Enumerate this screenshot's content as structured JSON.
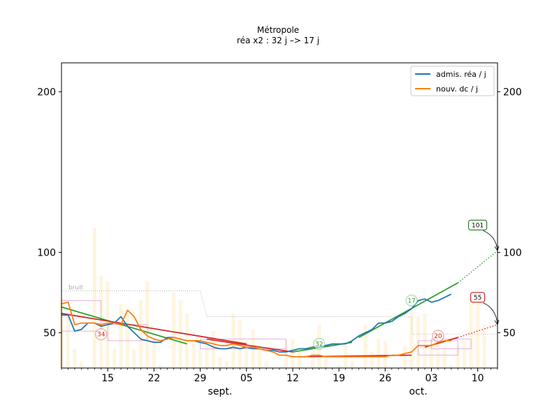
{
  "chart_data": {
    "type": "line",
    "title": "Métropole",
    "subtitle": "réa x2 : 32 j –> 17 j",
    "y_ticks": [
      50,
      100,
      200
    ],
    "ylim": [
      28,
      218
    ],
    "xlim": [
      "2020-08-08",
      "2020-10-13"
    ],
    "x_tick_labels": [
      {
        "date": "2020-08-15",
        "label": "15"
      },
      {
        "date": "2020-08-22",
        "label": "22"
      },
      {
        "date": "2020-08-29",
        "label": "29"
      },
      {
        "date": "2020-09-05",
        "label": "05"
      },
      {
        "date": "2020-09-12",
        "label": "12"
      },
      {
        "date": "2020-09-19",
        "label": "19"
      },
      {
        "date": "2020-09-26",
        "label": "26"
      },
      {
        "date": "2020-10-03",
        "label": "03"
      },
      {
        "date": "2020-10-10",
        "label": "10"
      }
    ],
    "month_labels": [
      {
        "date": "2020-09-01",
        "label": "sept."
      },
      {
        "date": "2020-10-01",
        "label": "oct."
      }
    ],
    "legend": {
      "position": "top-right",
      "entries": [
        {
          "label": "admis. réa / j",
          "color": "#1f77b4"
        },
        {
          "label": "nouv. dc / j",
          "color": "#ff7f0e"
        }
      ]
    },
    "noise_label": "bruit",
    "start_date": "2020-08-08",
    "series": [
      {
        "name": "admis. réa / j",
        "color": "#1f77b4",
        "values": [
          61,
          61,
          51,
          52,
          56,
          56,
          54,
          55,
          56,
          60,
          54,
          50,
          46,
          45,
          44,
          44,
          47,
          47,
          46,
          45,
          45,
          44,
          43,
          41,
          40,
          40,
          41,
          40,
          41,
          40,
          40,
          39,
          39,
          38,
          38,
          39,
          40,
          40,
          41,
          41,
          42,
          43,
          43,
          43,
          45,
          48,
          50,
          52,
          56,
          56,
          57,
          60,
          62,
          65,
          70,
          71,
          69,
          70,
          72,
          74
        ]
      },
      {
        "name": "nouv. dc / j",
        "color": "#ff7f0e",
        "values": [
          68,
          69,
          55,
          56,
          56,
          56,
          55,
          56,
          56,
          55,
          64,
          60,
          52,
          48,
          46,
          45,
          46,
          47,
          46,
          45,
          45,
          45,
          44,
          43,
          42,
          42,
          43,
          42,
          41,
          41,
          40,
          39,
          38,
          36,
          36,
          35,
          35,
          35,
          36,
          36,
          35,
          35,
          35,
          35,
          35,
          35,
          35,
          35,
          35,
          35,
          36,
          36,
          37,
          38,
          42,
          42,
          42,
          44,
          45,
          45
        ]
      }
    ],
    "trend_lines": [
      {
        "color": "#2ca02c",
        "from": [
          "2020-08-08",
          66
        ],
        "to": [
          "2020-08-27",
          43
        ]
      },
      {
        "color": "#d62728",
        "from": [
          "2020-08-08",
          62
        ],
        "to": [
          "2020-09-05",
          43
        ]
      },
      {
        "color": "#d62728",
        "from": [
          "2020-08-30",
          46
        ],
        "to": [
          "2020-09-12",
          38
        ]
      },
      {
        "color": "#2ca02c",
        "from": [
          "2020-09-12",
          38
        ],
        "to": [
          "2020-09-21",
          44
        ]
      },
      {
        "color": "#d62728",
        "from": [
          "2020-09-13",
          35
        ],
        "to": [
          "2020-09-30",
          36
        ]
      },
      {
        "color": "#2ca02c",
        "from": [
          "2020-09-22",
          47
        ],
        "to": [
          "2020-10-07",
          81
        ]
      },
      {
        "color": "#d62728",
        "from": [
          "2020-10-02",
          41
        ],
        "to": [
          "2020-10-07",
          47
        ]
      }
    ],
    "projections": [
      {
        "color": "#2ca02c",
        "from": [
          "2020-10-07",
          81
        ],
        "to": [
          "2020-10-13",
          101
        ]
      },
      {
        "color": "#d62728",
        "from": [
          "2020-10-07",
          47
        ],
        "to": [
          "2020-10-13",
          55
        ]
      }
    ],
    "annotations": [
      {
        "text": "34",
        "at": [
          "2020-08-14",
          49
        ],
        "color": "#d62728",
        "style": "circle"
      },
      {
        "text": "32",
        "at": [
          "2020-09-16",
          43
        ],
        "color": "#2ca02c",
        "style": "circle"
      },
      {
        "text": "17",
        "at": [
          "2020-09-30",
          70
        ],
        "color": "#2ca02c",
        "style": "circle"
      },
      {
        "text": "20",
        "at": [
          "2020-10-04",
          48
        ],
        "color": "#d62728",
        "style": "circle"
      },
      {
        "text": "101",
        "at": [
          "2020-10-10",
          117
        ],
        "color": "#006400",
        "style": "box",
        "arrow_to": [
          "2020-10-13",
          101
        ]
      },
      {
        "text": "55",
        "at": [
          "2020-10-10",
          72
        ],
        "color": "#cc0000",
        "style": "box",
        "arrow_to": [
          "2020-10-13",
          55
        ]
      }
    ],
    "noise_steps": [
      {
        "from": "2020-08-08",
        "to": "2020-08-29",
        "value": 76
      },
      {
        "from": "2020-08-30",
        "to": "2020-09-30",
        "value": 60
      },
      {
        "from": "2020-09-30",
        "to": "2020-10-13",
        "value": 49
      }
    ],
    "rolling_boxes": [
      {
        "from": "2020-08-08",
        "to": "2020-08-14",
        "low": 51,
        "high": 70
      },
      {
        "from": "2020-08-15",
        "to": "2020-08-21",
        "low": 45,
        "high": 55
      },
      {
        "from": "2020-08-29",
        "to": "2020-09-11",
        "low": 40,
        "high": 46
      },
      {
        "from": "2020-10-01",
        "to": "2020-10-07",
        "low": 36,
        "high": 45
      },
      {
        "from": "2020-10-03",
        "to": "2020-10-09",
        "low": 40,
        "high": 46
      }
    ],
    "daily_bars": [
      70,
      60,
      40,
      32,
      15,
      115,
      85,
      82,
      40,
      68,
      62,
      40,
      70,
      82,
      45,
      30,
      26,
      75,
      70,
      62,
      45,
      40,
      42,
      51,
      35,
      32,
      62,
      58,
      45,
      52,
      40,
      32,
      26,
      20,
      45,
      46,
      38,
      20,
      38,
      55,
      35,
      25,
      30,
      42,
      32,
      22,
      55,
      38,
      46,
      45,
      20,
      26,
      42,
      64,
      60,
      62,
      45,
      50,
      42,
      30,
      42,
      45,
      72,
      70,
      55,
      0
    ]
  }
}
